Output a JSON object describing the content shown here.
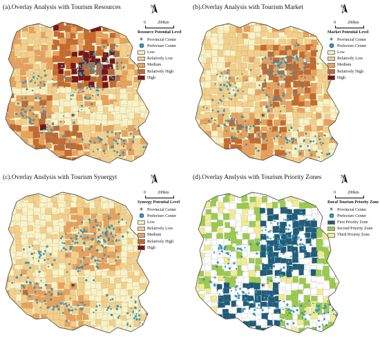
{
  "panels": [
    {
      "title": "(a).Overlay Analysis with Tourism Resources",
      "legend_title": "Resource Potential Level",
      "scheme": "potential",
      "classes": [
        {
          "label": "Low",
          "color": "#fbf3c4"
        },
        {
          "label": "Relatively Low",
          "color": "#f5cf86"
        },
        {
          "label": "Medium",
          "color": "#e9a15a"
        },
        {
          "label": "Relatively High",
          "color": "#c7692b"
        },
        {
          "label": "High",
          "color": "#7c1515"
        }
      ]
    },
    {
      "title": "(b).Overlay Analysis with Tourism Market",
      "legend_title": "Market Potential Level",
      "scheme": "potential",
      "classes": [
        {
          "label": "Low",
          "color": "#fbf3c4"
        },
        {
          "label": "Relatively Low",
          "color": "#f5cf86"
        },
        {
          "label": "Medium",
          "color": "#e9a15a"
        },
        {
          "label": "Relatively High",
          "color": "#c7692b"
        },
        {
          "label": "High",
          "color": "#7c1515"
        }
      ]
    },
    {
      "title": "(c).Overlay Anslysis with Tourism Synergyt",
      "legend_title": "Synergy Potential Level",
      "scheme": "potential",
      "classes": [
        {
          "label": "Low",
          "color": "#fbf3c4"
        },
        {
          "label": "Relatively Low",
          "color": "#f5cf86"
        },
        {
          "label": "Medium",
          "color": "#e9a15a"
        },
        {
          "label": "Relatively High",
          "color": "#c7692b"
        },
        {
          "label": "High",
          "color": "#7c1515"
        }
      ]
    },
    {
      "title": "(d).Overlay Anslysis with Tourism Priority Zones",
      "legend_title": "Rural Tourism Priority Zone",
      "scheme": "priority",
      "classes": [
        {
          "label": "First Priority Zone",
          "color": "#1f5c78"
        },
        {
          "label": "Second Priority Zone",
          "color": "#9ccb4b"
        },
        {
          "label": "Third Priority Zone",
          "color": "#f2ec8e"
        }
      ]
    }
  ],
  "point_legend": {
    "provincial": "Provincial Center",
    "prefecture": "Prefecture Center"
  },
  "north_label": "N",
  "scale": {
    "zero": "0",
    "end": "200km"
  },
  "dot_color": "#3aa0c8"
}
